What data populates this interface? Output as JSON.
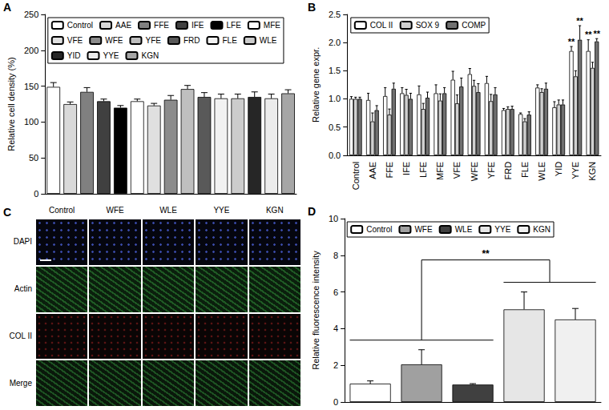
{
  "chart_data": [
    {
      "label": "A",
      "type": "bar",
      "y_label": "Relative cell density (%)",
      "categories": [
        "Control",
        "AAE",
        "FFE",
        "IFE",
        "LFE",
        "MFE",
        "VFE",
        "WFE",
        "YFE",
        "FRD",
        "FLE",
        "WLE",
        "YID",
        "YYE",
        "KGN"
      ],
      "values": [
        149,
        125,
        142,
        129,
        120,
        129,
        123,
        131,
        146,
        135,
        133,
        133,
        135,
        133,
        140
      ],
      "errors": [
        6,
        3,
        6,
        3,
        3,
        3,
        3,
        6,
        5,
        6,
        6,
        6,
        7,
        6,
        5
      ],
      "colors": [
        "#ffffff",
        "#d9d9d9",
        "#808080",
        "#404040",
        "#000000",
        "#ffffff",
        "#e0e0e0",
        "#8c8c8c",
        "#bfbfbf",
        "#595959",
        "#f2f2f2",
        "#cccccc",
        "#262626",
        "#ececec",
        "#a6a6a6"
      ],
      "ylim": [
        0,
        250
      ],
      "yticks": [
        0,
        50,
        100,
        150,
        200,
        250
      ],
      "grid": false,
      "legend": "top",
      "tick_labels": "y"
    },
    {
      "label": "B",
      "type": "bar",
      "y_label": "Relative gene expr.",
      "categories": [
        "Control",
        "AAE",
        "FFE",
        "IFE",
        "LFE",
        "MFE",
        "VFE",
        "WFE",
        "YFE",
        "FRD",
        "FLE",
        "WLE",
        "YID",
        "YYE",
        "KGN"
      ],
      "series": [
        {
          "name": "COL II",
          "color": "#ffffff",
          "values": [
            1.0,
            0.98,
            1.05,
            1.1,
            1.08,
            1.1,
            1.34,
            1.44,
            1.28,
            0.8,
            0.73,
            1.2,
            0.85,
            1.85,
            1.85
          ],
          "errors": [
            0.04,
            0.12,
            0.15,
            0.1,
            0.15,
            0.15,
            0.15,
            0.1,
            0.12,
            0.03,
            0.02,
            0.05,
            0.1,
            0.08,
            0.2
          ]
        },
        {
          "name": "SOX 9",
          "color": "#d0d0d0",
          "values": [
            1.0,
            0.6,
            0.72,
            1.07,
            0.82,
            0.97,
            0.92,
            1.23,
            0.96,
            0.82,
            0.6,
            1.12,
            0.9,
            1.4,
            1.55
          ],
          "errors": [
            0.03,
            0.15,
            0.1,
            0.1,
            0.1,
            0.12,
            0.15,
            0.1,
            0.12,
            0.04,
            0.05,
            0.06,
            0.08,
            0.1,
            0.1
          ]
        },
        {
          "name": "COMP",
          "color": "#707070",
          "values": [
            1.0,
            0.8,
            1.18,
            1.0,
            1.02,
            1.1,
            1.22,
            1.12,
            1.08,
            0.82,
            0.72,
            1.18,
            0.9,
            2.05,
            2.02
          ],
          "errors": [
            0.03,
            0.08,
            0.1,
            0.1,
            0.1,
            0.1,
            0.15,
            0.15,
            0.12,
            0.05,
            0.05,
            0.1,
            0.08,
            0.25,
            0.05
          ]
        }
      ],
      "ylim": [
        0,
        2.5
      ],
      "yticks": [
        {
          "value": 0,
          "label": "0.0"
        },
        0.5,
        {
          "value": 1,
          "label": "1.0"
        },
        1.5,
        {
          "value": 2,
          "label": "2.0"
        },
        2.5
      ],
      "grid": false,
      "legend": "top-left",
      "annotations": [
        {
          "category": "YYE",
          "series": "COL II",
          "text": "**"
        },
        {
          "category": "YYE",
          "series": "COMP",
          "text": "**"
        },
        {
          "category": "KGN",
          "series": "COL II",
          "text": "**"
        },
        {
          "category": "KGN",
          "series": "COMP",
          "text": "**"
        }
      ]
    },
    {
      "label": "D",
      "type": "bar",
      "y_label": "Relative fluorescence intensity",
      "categories": [
        "Control",
        "WFE",
        "WLE",
        "YYE",
        "KGN"
      ],
      "values": [
        1.0,
        2.05,
        0.95,
        5.05,
        4.5
      ],
      "errors": [
        0.15,
        0.8,
        0.05,
        0.95,
        0.6
      ],
      "colors": [
        "#ffffff",
        "#a0a0a0",
        "#404040",
        "#e6e6e6",
        "#f0f0f0"
      ],
      "ylim": [
        0,
        10
      ],
      "yticks": [
        0,
        2,
        4,
        6,
        8,
        10
      ],
      "grid": false,
      "legend": "top",
      "tick_labels": "y",
      "annotations": [
        {
          "text": "**",
          "groups": [
            [
              "Control",
              "WFE",
              "WLE"
            ],
            [
              "YYE",
              "KGN"
            ]
          ]
        }
      ]
    }
  ],
  "image_grid": {
    "label": "C",
    "columns": [
      "Control",
      "WFE",
      "WLE",
      "YYE",
      "KGN"
    ],
    "rows": [
      "DAPI",
      "Actin",
      "COL II",
      "Merge"
    ]
  }
}
